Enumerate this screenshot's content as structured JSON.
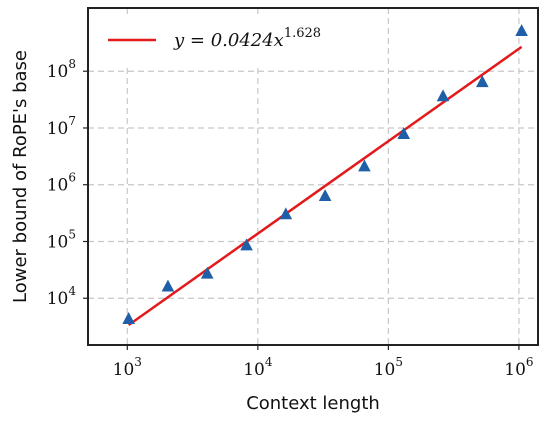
{
  "chart_data": {
    "type": "scatter",
    "xlabel": "Context length",
    "ylabel": "Lower bound of RoPE's base",
    "xscale": "log",
    "yscale": "log",
    "xlim": [
      500,
      1400000
    ],
    "ylim": [
      1500,
      1300000000
    ],
    "xticks": [
      {
        "value": 1000,
        "base": "10",
        "exp": "3"
      },
      {
        "value": 10000,
        "base": "10",
        "exp": "4"
      },
      {
        "value": 100000,
        "base": "10",
        "exp": "5"
      },
      {
        "value": 1000000,
        "base": "10",
        "exp": "6"
      }
    ],
    "yticks": [
      {
        "value": 10000,
        "base": "10",
        "exp": "4"
      },
      {
        "value": 100000,
        "base": "10",
        "exp": "5"
      },
      {
        "value": 1000000,
        "base": "10",
        "exp": "6"
      },
      {
        "value": 10000000,
        "base": "10",
        "exp": "7"
      },
      {
        "value": 100000000,
        "base": "10",
        "exp": "8"
      }
    ],
    "grid": true,
    "legend_position": "top-left",
    "points": {
      "x": [
        1024,
        2048,
        4096,
        8192,
        16384,
        32768,
        65536,
        131072,
        262144,
        524288,
        1048576
      ],
      "y": [
        4300,
        16000,
        27000,
        85000,
        300000,
        630000,
        2100000,
        7800000,
        36000000,
        64000000,
        510000000
      ],
      "color": "#1f5fa8",
      "marker": "triangle-up"
    },
    "fit": {
      "coefficient": 0.0424,
      "exponent": 1.628,
      "color": "#e31a1c",
      "legend_main": "y = 0.0424x",
      "legend_exp": "1.628"
    }
  }
}
